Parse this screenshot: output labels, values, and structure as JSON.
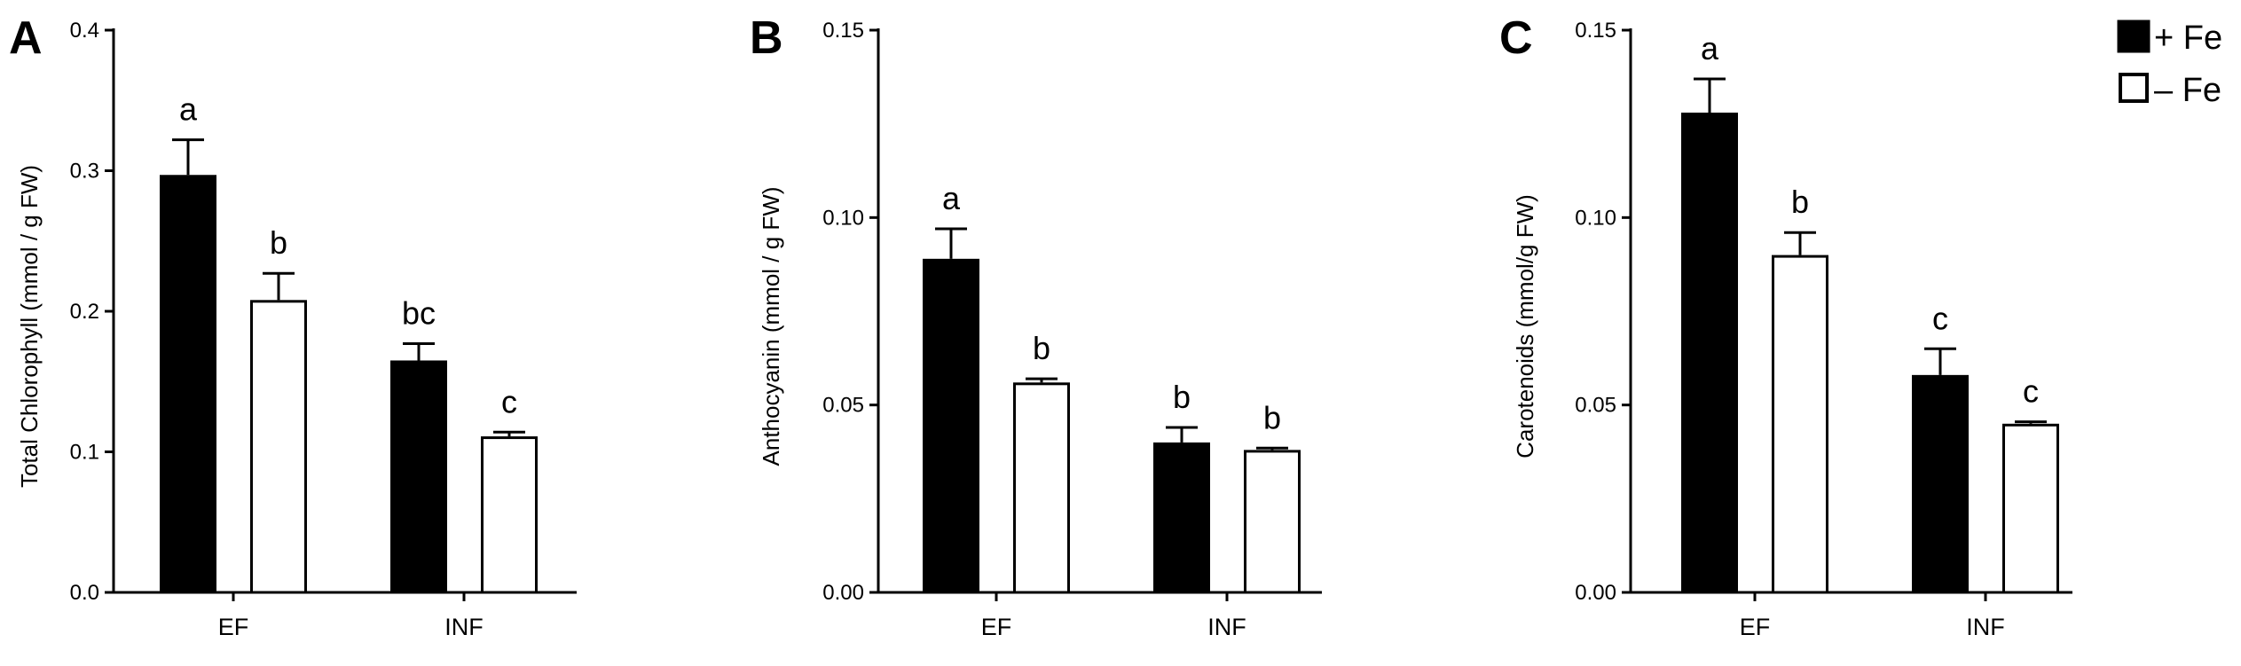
{
  "legend": [
    {
      "label": "+ Fe",
      "fill": "#000000"
    },
    {
      "label": "– Fe",
      "fill": "#ffffff"
    }
  ],
  "chart_data": [
    {
      "type": "bar",
      "panel": "A",
      "ylabel": "Total Chlorophyll (mmol / g FW)",
      "categories": [
        "EF",
        "INF"
      ],
      "ylim": [
        0,
        0.4
      ],
      "yticks": [
        "0.0",
        "0.1",
        "0.2",
        "0.3",
        "0.4"
      ],
      "series": [
        {
          "name": "+ Fe",
          "color": "#000000",
          "values": [
            0.297,
            0.165
          ],
          "errors": [
            0.025,
            0.012
          ],
          "letters": [
            "a",
            "bc"
          ]
        },
        {
          "name": "– Fe",
          "color": "#ffffff",
          "values": [
            0.208,
            0.111
          ],
          "errors": [
            0.019,
            0.003
          ],
          "letters": [
            "b",
            "c"
          ]
        }
      ]
    },
    {
      "type": "bar",
      "panel": "B",
      "ylabel": "Anthocyanin (mmol / g FW)",
      "categories": [
        "EF",
        "INF"
      ],
      "ylim": [
        0,
        0.15
      ],
      "yticks": [
        "0.00",
        "0.05",
        "0.10",
        "0.15"
      ],
      "series": [
        {
          "name": "+ Fe",
          "color": "#000000",
          "values": [
            0.089,
            0.04
          ],
          "errors": [
            0.008,
            0.004
          ],
          "letters": [
            "a",
            "b"
          ]
        },
        {
          "name": "– Fe",
          "color": "#ffffff",
          "values": [
            0.056,
            0.038
          ],
          "errors": [
            0.001,
            0.0005
          ],
          "letters": [
            "b",
            "b"
          ]
        }
      ]
    },
    {
      "type": "bar",
      "panel": "C",
      "ylabel": "Carotenoids (mmol/g FW)",
      "categories": [
        "EF",
        "INF"
      ],
      "ylim": [
        0,
        0.15
      ],
      "yticks": [
        "0.00",
        "0.05",
        "0.10",
        "0.15"
      ],
      "series": [
        {
          "name": "+ Fe",
          "color": "#000000",
          "values": [
            0.128,
            0.058
          ],
          "errors": [
            0.009,
            0.007
          ],
          "letters": [
            "a",
            "c"
          ]
        },
        {
          "name": "– Fe",
          "color": "#ffffff",
          "values": [
            0.09,
            0.045
          ],
          "errors": [
            0.006,
            0.0005
          ],
          "letters": [
            "b",
            "c"
          ]
        }
      ]
    }
  ]
}
